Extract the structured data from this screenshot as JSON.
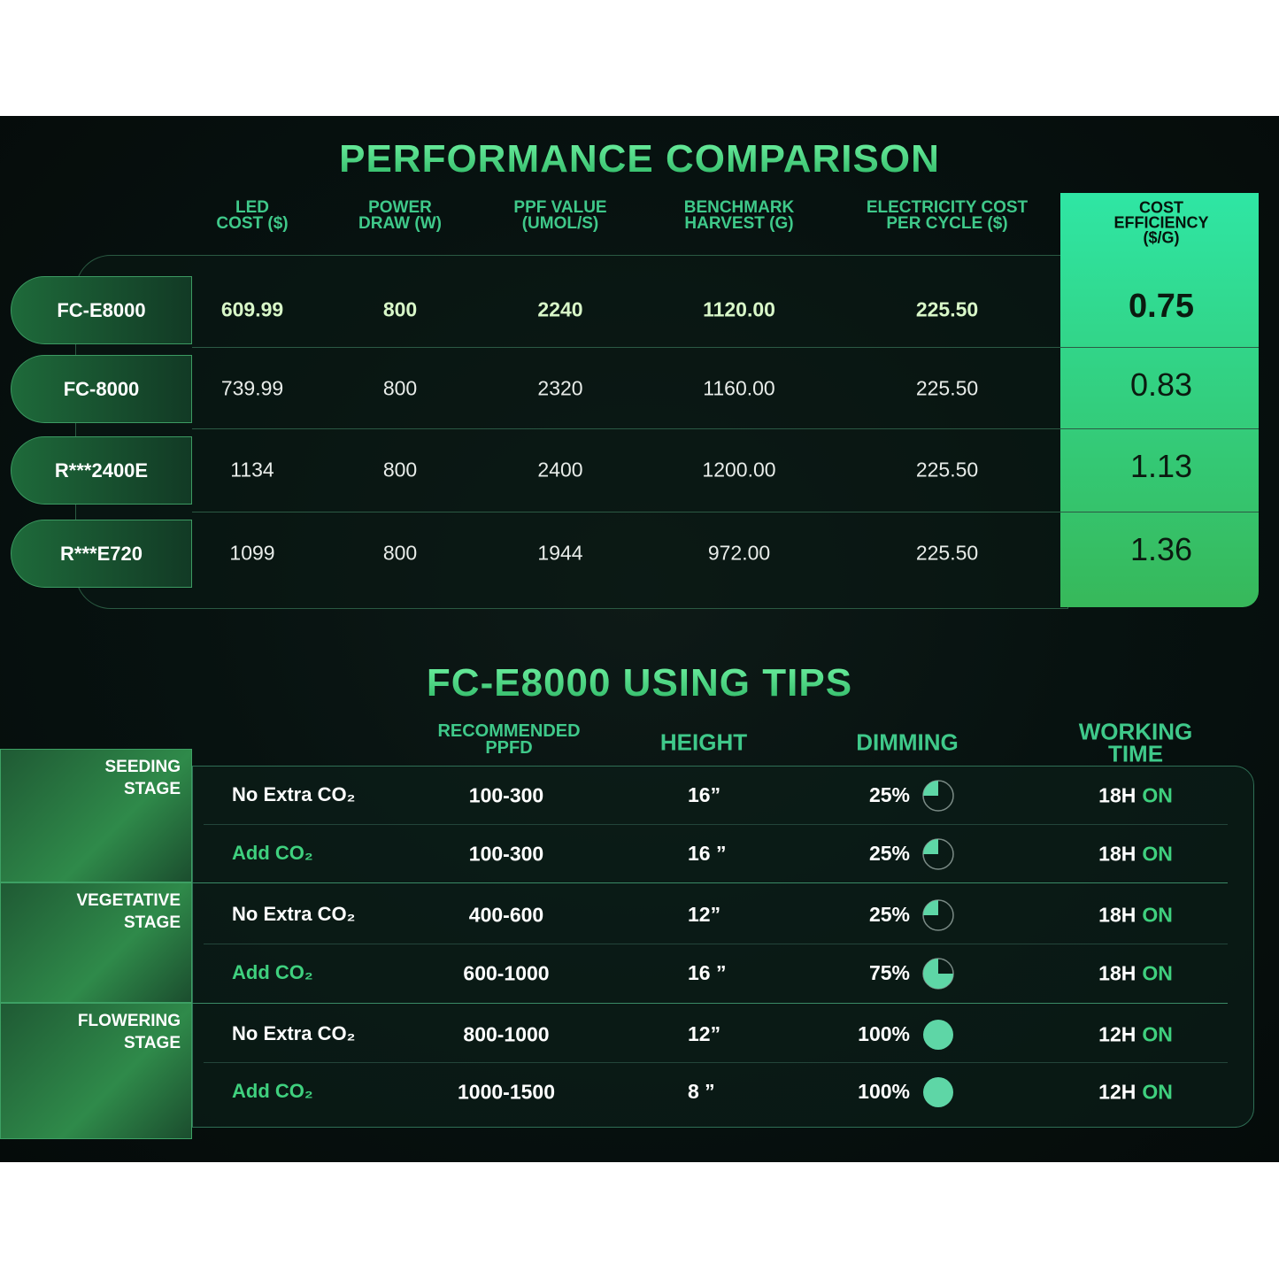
{
  "comparison": {
    "title": "PERFORMANCE COMPARISON",
    "headers": [
      "LED\nCOST ($)",
      "POWER\nDRAW (W)",
      "PPF VALUE\n(UMOL/S)",
      "BENCHMARK\nHARVEST (G)",
      "ELECTRICITY COST\nPER CYCLE ($)",
      "COST EFFICIENCY\n($/G)"
    ],
    "rows": [
      [
        "FC-E8000",
        "609.99",
        "800",
        "2240",
        "1120.00",
        "225.50",
        "0.75"
      ],
      [
        "FC-8000",
        "739.99",
        "800",
        "2320",
        "1160.00",
        "225.50",
        "0.83"
      ],
      [
        "R***2400E",
        "1134",
        "800",
        "2400",
        "1200.00",
        "225.50",
        "1.13"
      ],
      [
        "R***E720",
        "1099",
        "800",
        "1944",
        "972.00",
        "225.50",
        "1.36"
      ]
    ]
  },
  "tips": {
    "title": "FC-E8000 USING TIPS",
    "headers": [
      "RECOMMENDED\nPPFD",
      "HEIGHT",
      "DIMMING",
      "WORKING TIME"
    ],
    "stages": [
      {
        "name": "SEEDING\nSTAGE",
        "rows": [
          {
            "co2": "No Extra CO₂",
            "ppfd": "100-300",
            "height": "16”",
            "dimming": "25%",
            "time": "18H",
            "status": "ON"
          },
          {
            "co2": "Add CO₂",
            "ppfd": "100-300",
            "height": "16 ”",
            "dimming": "25%",
            "time": "18H",
            "status": "ON"
          }
        ]
      },
      {
        "name": "VEGETATIVE\nSTAGE",
        "rows": [
          {
            "co2": "No Extra CO₂",
            "ppfd": "400-600",
            "height": "12”",
            "dimming": "25%",
            "time": "18H",
            "status": "ON"
          },
          {
            "co2": "Add CO₂",
            "ppfd": "600-1000",
            "height": "16 ”",
            "dimming": "75%",
            "time": "18H",
            "status": "ON"
          }
        ]
      },
      {
        "name": "FLOWERING\nSTAGE",
        "rows": [
          {
            "co2": "No Extra CO₂",
            "ppfd": "800-1000",
            "height": "12”",
            "dimming": "100%",
            "time": "12H",
            "status": "ON"
          },
          {
            "co2": "Add CO₂",
            "ppfd": "1000-1500",
            "height": "8 ”",
            "dimming": "100%",
            "time": "12H",
            "status": "ON"
          }
        ]
      }
    ]
  }
}
